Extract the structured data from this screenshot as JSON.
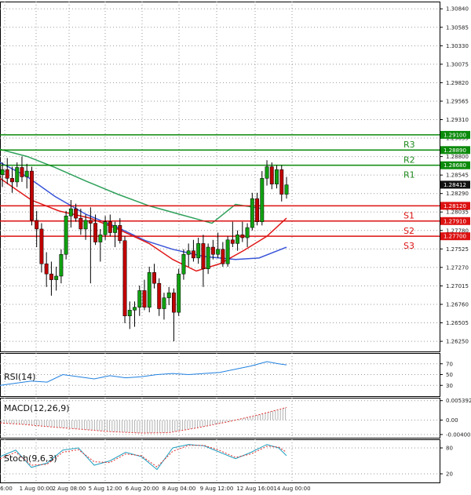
{
  "chart_data": {
    "type": "candlestick",
    "price_axis": {
      "ticks": [
        "1.30840",
        "1.30585",
        "1.30330",
        "1.30075",
        "1.29820",
        "1.29565",
        "1.29310",
        "1.29055",
        "1.28800",
        "1.28545",
        "1.28290",
        "1.28035",
        "1.27780",
        "1.27525",
        "1.27270",
        "1.27015",
        "1.26760",
        "1.26505",
        "1.26250"
      ],
      "range": [
        1.2611,
        1.3094
      ]
    },
    "time_axis": {
      "labels": [
        "6:00",
        "1 Aug 00:00",
        "2 Aug 08:00",
        "5 Aug 12:00",
        "6 Aug 20:00",
        "8 Aug 04:00",
        "9 Aug 12:00",
        "12 Aug 16:00",
        "14 Aug 00:00"
      ]
    },
    "current_price": "1.28412",
    "levels": [
      {
        "name": "R3",
        "value": "1.29100",
        "color": "#1f8a1f",
        "line_color": "#0a8a0a"
      },
      {
        "name": "R2",
        "value": "1.28890",
        "color": "#1f8a1f",
        "line_color": "#0a8a0a"
      },
      {
        "name": "R1",
        "value": "1.28680",
        "color": "#1f8a1f",
        "line_color": "#0a8a0a"
      },
      {
        "name": "S1",
        "value": "1.28120",
        "color": "#dd1111",
        "line_color": "#dd1111"
      },
      {
        "name": "S2",
        "value": "1.27910",
        "color": "#dd1111",
        "line_color": "#dd1111"
      },
      {
        "name": "S3",
        "value": "1.27700",
        "color": "#dd1111",
        "line_color": "#dd1111"
      }
    ],
    "candles": [
      [
        1.2855,
        1.2872,
        1.2838,
        1.2862
      ],
      [
        1.2862,
        1.2878,
        1.2842,
        1.285
      ],
      [
        1.285,
        1.2866,
        1.283,
        1.2845
      ],
      [
        1.2845,
        1.2872,
        1.2838,
        1.2865
      ],
      [
        1.2865,
        1.288,
        1.2845,
        1.2852
      ],
      [
        1.2852,
        1.287,
        1.2836,
        1.286
      ],
      [
        1.286,
        1.2866,
        1.2785,
        1.2792
      ],
      [
        1.2792,
        1.2805,
        1.2755,
        1.278
      ],
      [
        1.278,
        1.2788,
        1.272,
        1.2732
      ],
      [
        1.2732,
        1.2748,
        1.27,
        1.2718
      ],
      [
        1.2718,
        1.2735,
        1.2688,
        1.271
      ],
      [
        1.271,
        1.2728,
        1.2695,
        1.2715
      ],
      [
        1.2715,
        1.2752,
        1.2705,
        1.2745
      ],
      [
        1.2745,
        1.2805,
        1.2738,
        1.2798
      ],
      [
        1.2798,
        1.282,
        1.2782,
        1.2808
      ],
      [
        1.2808,
        1.2815,
        1.279,
        1.2795
      ],
      [
        1.2795,
        1.2808,
        1.2772,
        1.278
      ],
      [
        1.278,
        1.28,
        1.2765,
        1.2792
      ],
      [
        1.2792,
        1.281,
        1.2705,
        1.2788
      ],
      [
        1.2788,
        1.28,
        1.2758,
        1.2762
      ],
      [
        1.2762,
        1.278,
        1.2735,
        1.2772
      ],
      [
        1.2772,
        1.2798,
        1.2765,
        1.279
      ],
      [
        1.279,
        1.28,
        1.277,
        1.2775
      ],
      [
        1.2775,
        1.279,
        1.2755,
        1.2785
      ],
      [
        1.2785,
        1.2795,
        1.276,
        1.2764
      ],
      [
        1.2764,
        1.277,
        1.265,
        1.266
      ],
      [
        1.266,
        1.268,
        1.2642,
        1.2668
      ],
      [
        1.2668,
        1.268,
        1.2645,
        1.2672
      ],
      [
        1.2672,
        1.2702,
        1.266,
        1.2695
      ],
      [
        1.2695,
        1.271,
        1.2668,
        1.2672
      ],
      [
        1.2672,
        1.2728,
        1.2665,
        1.272
      ],
      [
        1.272,
        1.2732,
        1.2698,
        1.2705
      ],
      [
        1.2705,
        1.2712,
        1.266,
        1.267
      ],
      [
        1.267,
        1.2692,
        1.2655,
        1.2685
      ],
      [
        1.2685,
        1.27,
        1.2675,
        1.2692
      ],
      [
        1.2692,
        1.2698,
        1.2625,
        1.2665
      ],
      [
        1.2665,
        1.2725,
        1.266,
        1.2718
      ],
      [
        1.2718,
        1.2752,
        1.271,
        1.2745
      ],
      [
        1.2745,
        1.276,
        1.2728,
        1.275
      ],
      [
        1.275,
        1.2765,
        1.2735,
        1.274
      ],
      [
        1.274,
        1.2768,
        1.2732,
        1.276
      ],
      [
        1.276,
        1.2772,
        1.27,
        1.2725
      ],
      [
        1.2725,
        1.276,
        1.2718,
        1.2755
      ],
      [
        1.2755,
        1.2765,
        1.2738,
        1.2745
      ],
      [
        1.2745,
        1.2775,
        1.274,
        1.2752
      ],
      [
        1.2752,
        1.2762,
        1.2728,
        1.2732
      ],
      [
        1.2732,
        1.277,
        1.2728,
        1.2765
      ],
      [
        1.2765,
        1.279,
        1.2755,
        1.276
      ],
      [
        1.276,
        1.2778,
        1.275,
        1.2772
      ],
      [
        1.2772,
        1.279,
        1.2762,
        1.2768
      ],
      [
        1.2768,
        1.2788,
        1.2755,
        1.2782
      ],
      [
        1.2782,
        1.283,
        1.2778,
        1.2822
      ],
      [
        1.2822,
        1.283,
        1.2785,
        1.279
      ],
      [
        1.279,
        1.286,
        1.2785,
        1.285
      ],
      [
        1.285,
        1.2875,
        1.284,
        1.2866
      ],
      [
        1.2866,
        1.2872,
        1.2835,
        1.2842
      ],
      [
        1.2842,
        1.2868,
        1.2836,
        1.2862
      ],
      [
        1.2862,
        1.2868,
        1.2818,
        1.2828
      ],
      [
        1.2828,
        1.2852,
        1.2822,
        1.2841
      ]
    ],
    "moving_averages": [
      {
        "color": "#2ea05a",
        "values": [
          [
            0,
            1.289
          ],
          [
            35,
            1.288
          ],
          [
            70,
            1.2865
          ],
          [
            110,
            1.2846
          ],
          [
            150,
            1.2828
          ],
          [
            190,
            1.2812
          ],
          [
            230,
            1.28
          ],
          [
            270,
            1.2788
          ],
          [
            300,
            1.2814
          ],
          [
            335,
            1.2808
          ]
        ]
      },
      {
        "color": "#3a55d8",
        "values": [
          [
            0,
            1.2872
          ],
          [
            35,
            1.2852
          ],
          [
            70,
            1.2825
          ],
          [
            110,
            1.28
          ],
          [
            150,
            1.2782
          ],
          [
            185,
            1.2764
          ],
          [
            220,
            1.2752
          ],
          [
            260,
            1.2742
          ],
          [
            300,
            1.2738
          ],
          [
            330,
            1.274
          ],
          [
            365,
            1.2755
          ]
        ]
      },
      {
        "color": "#e01818",
        "values": [
          [
            0,
            1.285
          ],
          [
            40,
            1.282
          ],
          [
            75,
            1.2805
          ],
          [
            115,
            1.2795
          ],
          [
            150,
            1.278
          ],
          [
            190,
            1.276
          ],
          [
            220,
            1.2738
          ],
          [
            250,
            1.2722
          ],
          [
            280,
            1.2732
          ],
          [
            310,
            1.275
          ],
          [
            340,
            1.277
          ],
          [
            365,
            1.2795
          ]
        ]
      }
    ],
    "rsi": {
      "label": "RSI(14)",
      "ticks": [
        "70",
        "50",
        "30"
      ],
      "range": [
        10,
        90
      ],
      "values": [
        [
          0,
          30
        ],
        [
          20,
          34
        ],
        [
          40,
          38
        ],
        [
          60,
          36
        ],
        [
          80,
          50
        ],
        [
          100,
          46
        ],
        [
          120,
          42
        ],
        [
          140,
          48
        ],
        [
          160,
          44
        ],
        [
          180,
          46
        ],
        [
          200,
          50
        ],
        [
          220,
          52
        ],
        [
          240,
          50
        ],
        [
          260,
          52
        ],
        [
          280,
          54
        ],
        [
          300,
          60
        ],
        [
          320,
          66
        ],
        [
          340,
          74
        ],
        [
          355,
          70
        ],
        [
          365,
          68
        ]
      ]
    },
    "macd": {
      "label": "MACD(12,26,9)",
      "ticks": [
        "0.005392",
        "0.00",
        "-0.004007"
      ],
      "range": [
        -0.0049,
        0.0062
      ],
      "values": [
        [
          0,
          -0.0008
        ],
        [
          30,
          -0.0012
        ],
        [
          60,
          -0.0018
        ],
        [
          100,
          -0.0025
        ],
        [
          140,
          -0.0032
        ],
        [
          180,
          -0.0036
        ],
        [
          215,
          -0.0035
        ],
        [
          250,
          -0.0022
        ],
        [
          290,
          -0.0005
        ],
        [
          330,
          0.0015
        ],
        [
          365,
          0.0035
        ]
      ]
    },
    "stoch": {
      "label": "Stoch(9,6,3)",
      "ticks": [
        "80",
        "20"
      ],
      "range": [
        0,
        100
      ],
      "main": [
        [
          0,
          60
        ],
        [
          20,
          75
        ],
        [
          40,
          35
        ],
        [
          60,
          45
        ],
        [
          80,
          75
        ],
        [
          100,
          80
        ],
        [
          120,
          40
        ],
        [
          140,
          50
        ],
        [
          160,
          70
        ],
        [
          180,
          60
        ],
        [
          200,
          30
        ],
        [
          220,
          80
        ],
        [
          240,
          88
        ],
        [
          260,
          85
        ],
        [
          280,
          70
        ],
        [
          300,
          55
        ],
        [
          320,
          70
        ],
        [
          340,
          88
        ],
        [
          355,
          80
        ],
        [
          365,
          62
        ]
      ],
      "signal": [
        [
          0,
          55
        ],
        [
          20,
          70
        ],
        [
          40,
          40
        ],
        [
          60,
          42
        ],
        [
          80,
          70
        ],
        [
          100,
          76
        ],
        [
          120,
          48
        ],
        [
          140,
          46
        ],
        [
          160,
          66
        ],
        [
          180,
          62
        ],
        [
          200,
          36
        ],
        [
          220,
          72
        ],
        [
          240,
          86
        ],
        [
          260,
          86
        ],
        [
          280,
          74
        ],
        [
          300,
          58
        ],
        [
          320,
          66
        ],
        [
          340,
          84
        ],
        [
          355,
          82
        ],
        [
          365,
          70
        ]
      ]
    }
  }
}
